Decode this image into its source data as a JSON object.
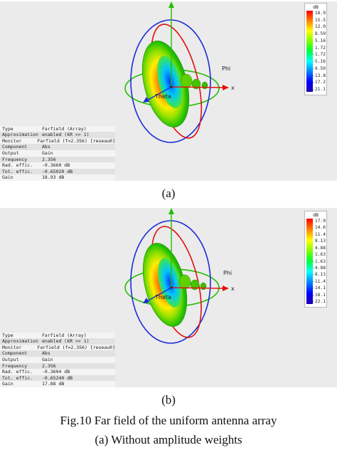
{
  "panels": [
    {
      "id": "a",
      "label": "(a)",
      "info": [
        {
          "key": "Type",
          "value": "Farfield (Array)"
        },
        {
          "key": "Approximation",
          "value": "enabled (kR >> 1)"
        },
        {
          "key": "Monitor",
          "value": "Farfield (f=2.356) [reseau0]"
        },
        {
          "key": "Component",
          "value": "Abs"
        },
        {
          "key": "Output",
          "value": "Gain"
        },
        {
          "key": "Frequency",
          "value": "2.356"
        },
        {
          "key": "Rad. effic.",
          "value": "-0.3660 dB"
        },
        {
          "key": "Tot. effic.",
          "value": "-0.65020 dB"
        },
        {
          "key": "Gain",
          "value": "18.93 dB"
        }
      ],
      "legend": {
        "unit": "dB",
        "ticks": [
          "18.9",
          "15.5",
          "12.0",
          "8.59",
          "5.16",
          "1.72",
          "-1.72",
          "-5.16",
          "-9.50",
          "-13.8",
          "-17.2",
          "-21.1"
        ]
      },
      "axes": {
        "x": "x",
        "phi": "Phi",
        "theta": "Theta"
      }
    },
    {
      "id": "b",
      "label": "(b)",
      "info": [
        {
          "key": "Type",
          "value": "Farfield (Array)"
        },
        {
          "key": "Approximation",
          "value": "enabled (kR >> 1)"
        },
        {
          "key": "Monitor",
          "value": "Farfield (f=2.356) [reseau0]"
        },
        {
          "key": "Component",
          "value": "Abs"
        },
        {
          "key": "Output",
          "value": "Gain"
        },
        {
          "key": "Frequency",
          "value": "2.356"
        },
        {
          "key": "Rad. effic.",
          "value": "-0.3604 dB"
        },
        {
          "key": "Tot. effic.",
          "value": "-0.65240 dB"
        },
        {
          "key": "Gain",
          "value": "17.88 dB"
        }
      ],
      "legend": {
        "unit": "dB",
        "ticks": [
          "17.9",
          "14.6",
          "11.4",
          "8.13",
          "4.88",
          "1.63",
          "-1.63",
          "-4.88",
          "-8.13",
          "-11.4",
          "-14.1",
          "-18.1",
          "-22.1"
        ]
      },
      "axes": {
        "x": "x",
        "phi": "Phi",
        "theta": "Theta"
      }
    }
  ],
  "caption": {
    "title": "Fig.10 Far field of the uniform antenna array",
    "sub": "(a) Without amplitude weights"
  }
}
